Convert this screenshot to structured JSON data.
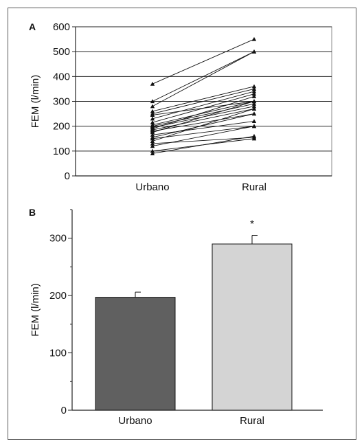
{
  "chart_data": [
    {
      "panel": "A",
      "type": "line",
      "ylabel": "FEM (l/min)",
      "categories": [
        "Urbano",
        "Rural"
      ],
      "ylim": [
        0,
        600
      ],
      "yticks": [
        0,
        100,
        200,
        300,
        400,
        500,
        600
      ],
      "grid": true,
      "marker": "triangle",
      "series": [
        {
          "values": [
            370,
            550
          ]
        },
        {
          "values": [
            300,
            500
          ]
        },
        {
          "values": [
            280,
            500
          ]
        },
        {
          "values": [
            260,
            360
          ]
        },
        {
          "values": [
            250,
            350
          ]
        },
        {
          "values": [
            245,
            300
          ]
        },
        {
          "values": [
            230,
            340
          ]
        },
        {
          "values": [
            215,
            330
          ]
        },
        {
          "values": [
            205,
            300
          ]
        },
        {
          "values": [
            200,
            290
          ]
        },
        {
          "values": [
            195,
            280
          ]
        },
        {
          "values": [
            190,
            320
          ]
        },
        {
          "values": [
            185,
            270
          ]
        },
        {
          "values": [
            180,
            250
          ]
        },
        {
          "values": [
            175,
            300
          ]
        },
        {
          "values": [
            165,
            220
          ]
        },
        {
          "values": [
            155,
            250
          ]
        },
        {
          "values": [
            150,
            200
          ]
        },
        {
          "values": [
            140,
            270
          ]
        },
        {
          "values": [
            130,
            155
          ]
        },
        {
          "values": [
            120,
            200
          ]
        },
        {
          "values": [
            100,
            150
          ]
        },
        {
          "values": [
            90,
            160
          ]
        }
      ]
    },
    {
      "panel": "B",
      "type": "bar",
      "ylabel": "FEM (l/min)",
      "categories": [
        "Urbano",
        "Rural"
      ],
      "values": [
        197,
        290
      ],
      "error": [
        9,
        15
      ],
      "ylim": [
        0,
        350
      ],
      "yticks": [
        0,
        100,
        200,
        300
      ],
      "annotations": [
        "",
        "*"
      ],
      "colors": {
        "bar1": "#606060",
        "bar2": "#d4d4d4"
      }
    }
  ]
}
